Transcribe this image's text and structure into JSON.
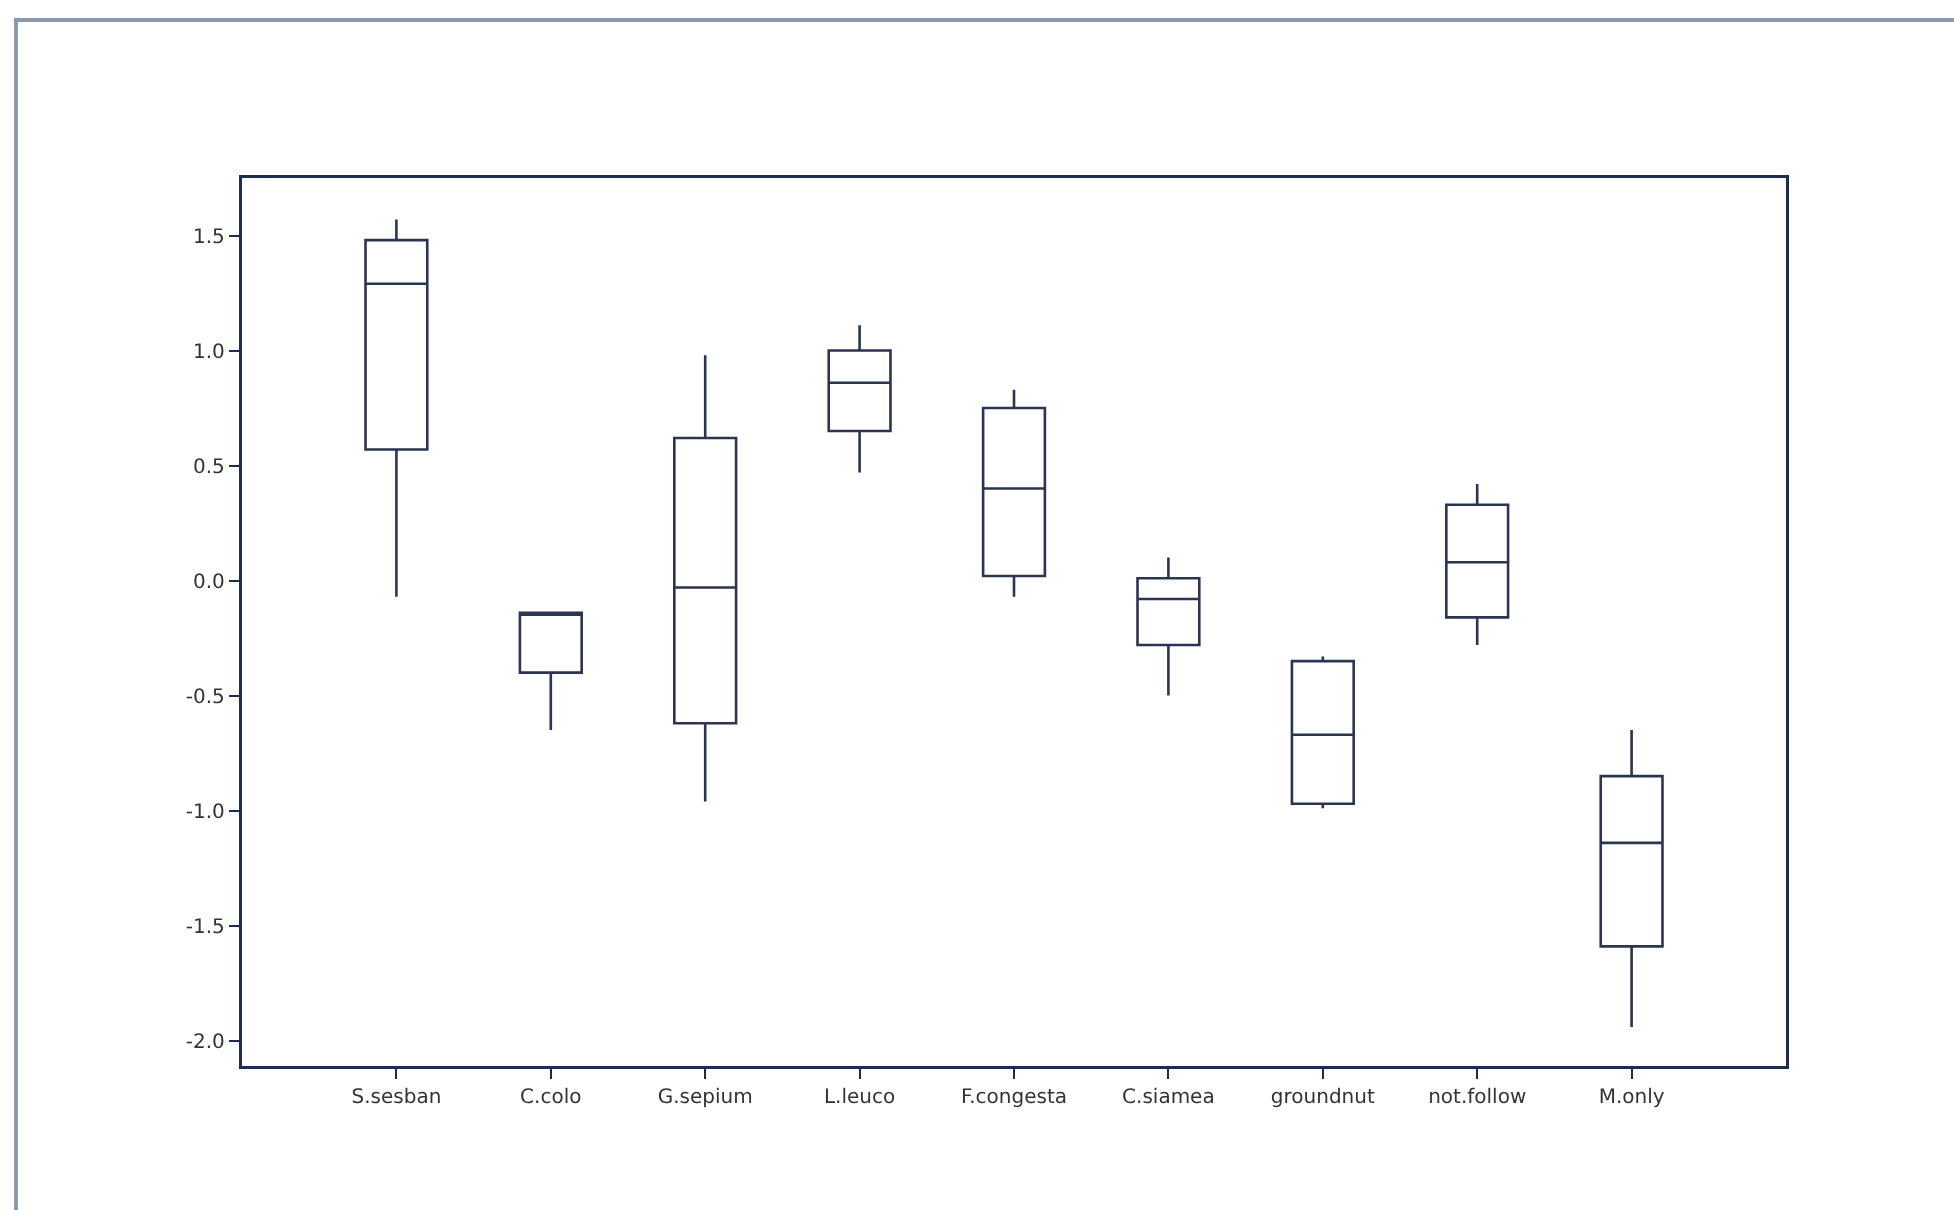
{
  "chart_data": {
    "type": "box",
    "categories": [
      "S.sesban",
      "C.colo",
      "G.sepium",
      "L.leuco",
      "F.congesta",
      "C.siamea",
      "groundnut",
      "not.follow",
      "M.only"
    ],
    "color": "#2b3552",
    "boxes": [
      {
        "low": -0.07,
        "q1": 0.57,
        "median": 1.29,
        "q3": 1.48,
        "high": 1.57
      },
      {
        "low": -0.65,
        "q1": -0.4,
        "median": -0.14,
        "q3": -0.14,
        "high": -0.14
      },
      {
        "low": -0.96,
        "q1": -0.62,
        "median": -0.03,
        "q3": 0.62,
        "high": 0.98
      },
      {
        "low": 0.47,
        "q1": 0.65,
        "median": 0.86,
        "q3": 1.0,
        "high": 1.11
      },
      {
        "low": -0.07,
        "q1": 0.02,
        "median": 0.4,
        "q3": 0.75,
        "high": 0.83
      },
      {
        "low": -0.5,
        "q1": -0.28,
        "median": -0.08,
        "q3": 0.01,
        "high": 0.1
      },
      {
        "low": -0.99,
        "q1": -0.97,
        "median": -0.67,
        "q3": -0.35,
        "high": -0.33
      },
      {
        "low": -0.28,
        "q1": -0.16,
        "median": 0.08,
        "q3": 0.33,
        "high": 0.42
      },
      {
        "low": -1.94,
        "q1": -1.59,
        "median": -1.14,
        "q3": -0.85,
        "high": -0.65
      }
    ],
    "ylim": [
      -2.11,
      1.75
    ],
    "yticks": [
      1.5,
      {
        "value": 1,
        "label": "1.0"
      },
      0.5,
      {
        "value": 0,
        "label": "0.0"
      },
      -0.5,
      {
        "value": -1,
        "label": "-1.0"
      },
      -1.5,
      {
        "value": -2,
        "label": "-2.0"
      }
    ]
  }
}
